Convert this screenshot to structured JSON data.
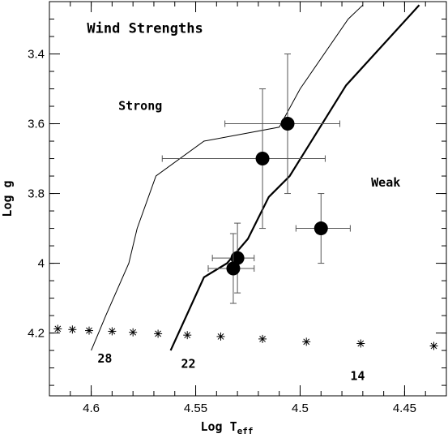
{
  "chart_data": {
    "type": "scatter",
    "title": "Wind Strengths",
    "xlabel": "Log T",
    "xlabel_sub": "eff",
    "ylabel": "Log g",
    "xlim": [
      4.62,
      4.43
    ],
    "ylim": [
      4.38,
      3.25
    ],
    "x_reversed": true,
    "y_reversed": true,
    "x_ticks": [
      {
        "value": 4.6,
        "label": "4.6"
      },
      {
        "value": 4.55,
        "label": "4.55"
      },
      {
        "value": 4.5,
        "label": "4.5"
      },
      {
        "value": 4.45,
        "label": "4.45"
      }
    ],
    "y_ticks": [
      {
        "value": 3.4,
        "label": "3.4"
      },
      {
        "value": 3.6,
        "label": "3.6"
      },
      {
        "value": 3.8,
        "label": "3.8"
      },
      {
        "value": 4.0,
        "label": "4"
      },
      {
        "value": 4.2,
        "label": "4.2"
      }
    ],
    "x_minor_step": 0.01,
    "y_minor_step": 0.05,
    "points": [
      {
        "x": 4.506,
        "y": 3.6,
        "xerr": [
          0.03,
          0.025
        ],
        "yerr": [
          0.2,
          0.2
        ]
      },
      {
        "x": 4.518,
        "y": 3.7,
        "xerr": [
          0.048,
          0.03
        ],
        "yerr": [
          0.2,
          0.2
        ]
      },
      {
        "x": 4.49,
        "y": 3.9,
        "xerr": [
          0.012,
          0.014
        ],
        "yerr": [
          0.1,
          0.1
        ]
      },
      {
        "x": 4.53,
        "y": 3.985,
        "xerr": [
          0.012,
          0.008
        ],
        "yerr": [
          0.1,
          0.1
        ]
      },
      {
        "x": 4.532,
        "y": 4.015,
        "xerr": [
          0.012,
          0.01
        ],
        "yerr": [
          0.1,
          0.1
        ]
      }
    ],
    "curves": [
      {
        "style": "thin",
        "points": [
          [
            4.6,
            4.25
          ],
          [
            4.593,
            4.15
          ],
          [
            4.582,
            4.0
          ],
          [
            4.578,
            3.9
          ],
          [
            4.569,
            3.75
          ],
          [
            4.546,
            3.65
          ],
          [
            4.51,
            3.61
          ],
          [
            4.5,
            3.5
          ],
          [
            4.477,
            3.3
          ],
          [
            4.47,
            3.26
          ]
        ]
      },
      {
        "style": "thick",
        "points": [
          [
            4.562,
            4.25
          ],
          [
            4.546,
            4.04
          ],
          [
            4.535,
            4.0
          ],
          [
            4.525,
            3.93
          ],
          [
            4.515,
            3.81
          ],
          [
            4.505,
            3.75
          ],
          [
            4.478,
            3.49
          ],
          [
            4.443,
            3.26
          ]
        ]
      }
    ],
    "asterisks": [
      {
        "x": 4.616,
        "y": 4.188
      },
      {
        "x": 4.609,
        "y": 4.19
      },
      {
        "x": 4.601,
        "y": 4.193
      },
      {
        "x": 4.59,
        "y": 4.195
      },
      {
        "x": 4.58,
        "y": 4.198
      },
      {
        "x": 4.568,
        "y": 4.202
      },
      {
        "x": 4.554,
        "y": 4.206
      },
      {
        "x": 4.538,
        "y": 4.21
      },
      {
        "x": 4.518,
        "y": 4.217
      },
      {
        "x": 4.497,
        "y": 4.225
      },
      {
        "x": 4.471,
        "y": 4.23
      },
      {
        "x": 4.436,
        "y": 4.237
      }
    ],
    "annotations": [
      {
        "text": "Wind Strengths",
        "x": 4.602,
        "y": 3.34,
        "style": "title"
      },
      {
        "text": "Strong",
        "x": 4.587,
        "y": 3.56,
        "style": "label"
      },
      {
        "text": "Weak",
        "x": 4.466,
        "y": 3.78,
        "style": "label"
      },
      {
        "text": "28",
        "x": 4.597,
        "y": 4.285,
        "style": "label"
      },
      {
        "text": "22",
        "x": 4.557,
        "y": 4.3,
        "style": "label"
      },
      {
        "text": "14",
        "x": 4.476,
        "y": 4.335,
        "style": "label"
      }
    ]
  }
}
